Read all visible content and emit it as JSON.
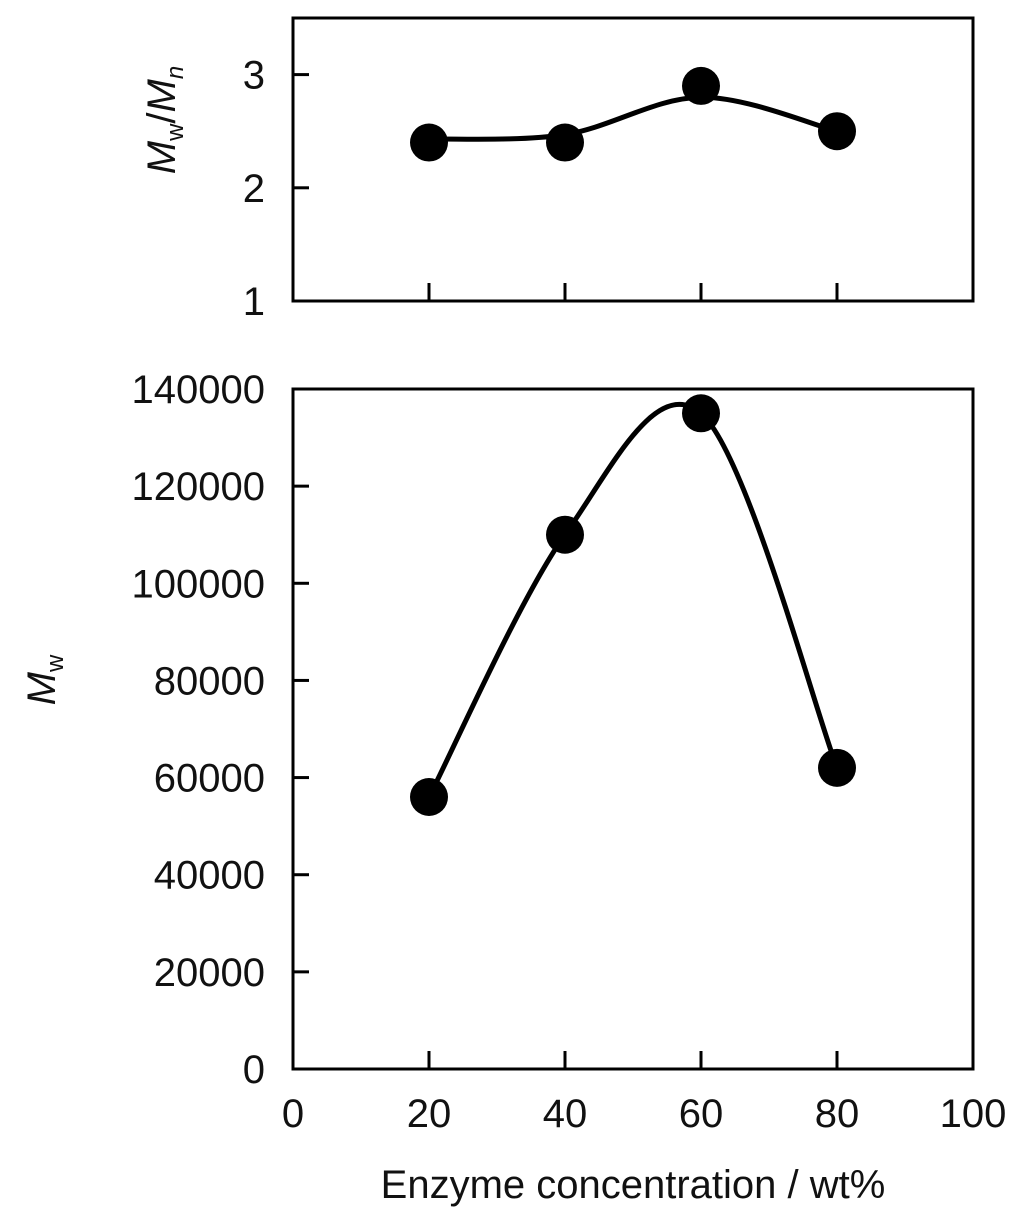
{
  "chart_data": [
    {
      "type": "scatter",
      "ylabel_main": "M",
      "ylabel_sub1": "w",
      "ylabel_sep": "/",
      "ylabel_main2": "M",
      "ylabel_sub2": "n",
      "xlim": [
        0,
        100
      ],
      "ylim": [
        1,
        3.5
      ],
      "ytick_labels": [
        "1",
        "2",
        "3"
      ],
      "ytick_values": [
        1,
        2,
        3
      ],
      "xtick_values": [
        20,
        40,
        60,
        80
      ],
      "series": [
        {
          "x": [
            20,
            40,
            60,
            80
          ],
          "values": [
            2.4,
            2.4,
            2.9,
            2.5
          ]
        }
      ],
      "fit_curve": {
        "x": [
          20,
          40,
          60,
          80
        ],
        "values": [
          2.43,
          2.47,
          2.8,
          2.5
        ]
      }
    },
    {
      "type": "scatter",
      "ylabel_main": "M",
      "ylabel_sub1": "w",
      "xlabel": "Enzyme concentration / wt%",
      "xlim": [
        0,
        100
      ],
      "ylim": [
        0,
        140000
      ],
      "ytick_labels": [
        "0",
        "20000",
        "40000",
        "60000",
        "80000",
        "100000",
        "120000",
        "140000"
      ],
      "ytick_values": [
        0,
        20000,
        40000,
        60000,
        80000,
        100000,
        120000,
        140000
      ],
      "xtick_labels": [
        "0",
        "20",
        "40",
        "60",
        "80",
        "100"
      ],
      "xtick_values": [
        0,
        20,
        40,
        60,
        80,
        100
      ],
      "series": [
        {
          "x": [
            20,
            40,
            60,
            80
          ],
          "values": [
            56000,
            110000,
            135000,
            62000
          ]
        }
      ],
      "fit_curve": {
        "x": [
          20,
          40,
          60,
          80
        ],
        "values": [
          56000,
          110000,
          135000,
          62000
        ]
      }
    }
  ]
}
